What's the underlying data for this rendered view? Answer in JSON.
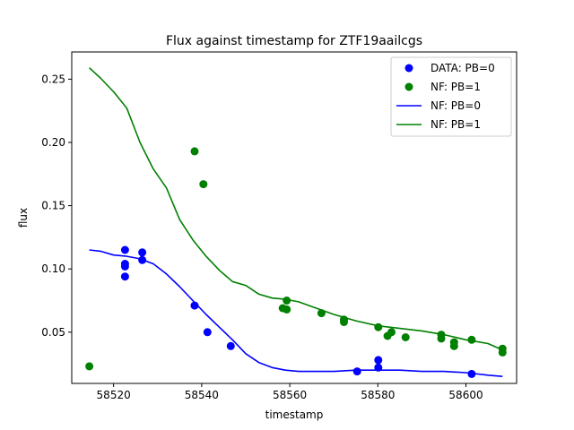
{
  "chart_data": {
    "type": "scatter",
    "title": "Flux against timestamp for ZTF19aailcgs",
    "xlabel": "timestamp",
    "ylabel": "flux",
    "xlim": [
      58510.5,
      58611.5
    ],
    "ylim": [
      0.0095,
      0.2715
    ],
    "xticks": [
      58520,
      58540,
      58560,
      58580,
      58600
    ],
    "yticks": [
      0.05,
      0.1,
      0.15,
      0.2,
      0.25
    ],
    "xtick_labels": [
      "58520",
      "58540",
      "58560",
      "58580",
      "58600"
    ],
    "ytick_labels": [
      "0.05",
      "0.10",
      "0.15",
      "0.20",
      "0.25"
    ],
    "grid": false,
    "legend_position": "top-right",
    "series": [
      {
        "name": "DATA: PB=0",
        "kind": "points",
        "color": "#0000ff",
        "x": [
          58522.6,
          58522.6,
          58522.6,
          58522.6,
          58526.5,
          58526.5,
          58538.4,
          58541.3,
          58546.6,
          58575.3,
          58580.1,
          58580.1,
          58601.3
        ],
        "y": [
          0.115,
          0.104,
          0.102,
          0.094,
          0.113,
          0.107,
          0.071,
          0.05,
          0.039,
          0.019,
          0.022,
          0.028,
          0.017
        ]
      },
      {
        "name": "NF: PB=1",
        "kind": "points",
        "color": "#008000",
        "x": [
          58514.5,
          58538.4,
          58540.4,
          58558.4,
          58559.3,
          58559.3,
          58567.2,
          58572.3,
          58572.3,
          58580.1,
          58582.2,
          58583.1,
          58586.3,
          58594.4,
          58594.4,
          58597.3,
          58597.3,
          58601.3,
          58608.3,
          58608.3
        ],
        "y": [
          0.023,
          0.193,
          0.167,
          0.069,
          0.075,
          0.068,
          0.065,
          0.06,
          0.058,
          0.054,
          0.047,
          0.05,
          0.046,
          0.048,
          0.045,
          0.042,
          0.039,
          0.044,
          0.037,
          0.034
        ]
      },
      {
        "name": "NF: PB=0",
        "kind": "line",
        "color": "#0000ff",
        "x": [
          58514.5,
          58517,
          58520,
          58523,
          58526,
          58529,
          58532,
          58535,
          58538,
          58541,
          58544,
          58547,
          58550,
          58553,
          58556,
          58559,
          58562,
          58566,
          58570,
          58575,
          58580,
          58585,
          58590,
          58595,
          58600,
          58605,
          58608.3
        ],
        "y": [
          0.115,
          0.114,
          0.111,
          0.11,
          0.108,
          0.104,
          0.096,
          0.086,
          0.075,
          0.064,
          0.054,
          0.044,
          0.033,
          0.026,
          0.022,
          0.02,
          0.019,
          0.019,
          0.019,
          0.02,
          0.02,
          0.02,
          0.019,
          0.019,
          0.018,
          0.016,
          0.015
        ]
      },
      {
        "name": "NF: PB=1",
        "kind": "line",
        "color": "#008000",
        "x": [
          58514.5,
          58517,
          58520,
          58523,
          58526,
          58529,
          58532,
          58535,
          58538,
          58541,
          58544,
          58547,
          58550,
          58553,
          58556,
          58559,
          58562,
          58566,
          58570,
          58575,
          58580,
          58585,
          58590,
          58595,
          58600,
          58605,
          58608.3
        ],
        "y": [
          0.259,
          0.251,
          0.24,
          0.227,
          0.2,
          0.179,
          0.164,
          0.139,
          0.123,
          0.11,
          0.099,
          0.09,
          0.087,
          0.08,
          0.077,
          0.076,
          0.074,
          0.069,
          0.064,
          0.059,
          0.055,
          0.053,
          0.051,
          0.048,
          0.044,
          0.041,
          0.036
        ]
      }
    ]
  }
}
